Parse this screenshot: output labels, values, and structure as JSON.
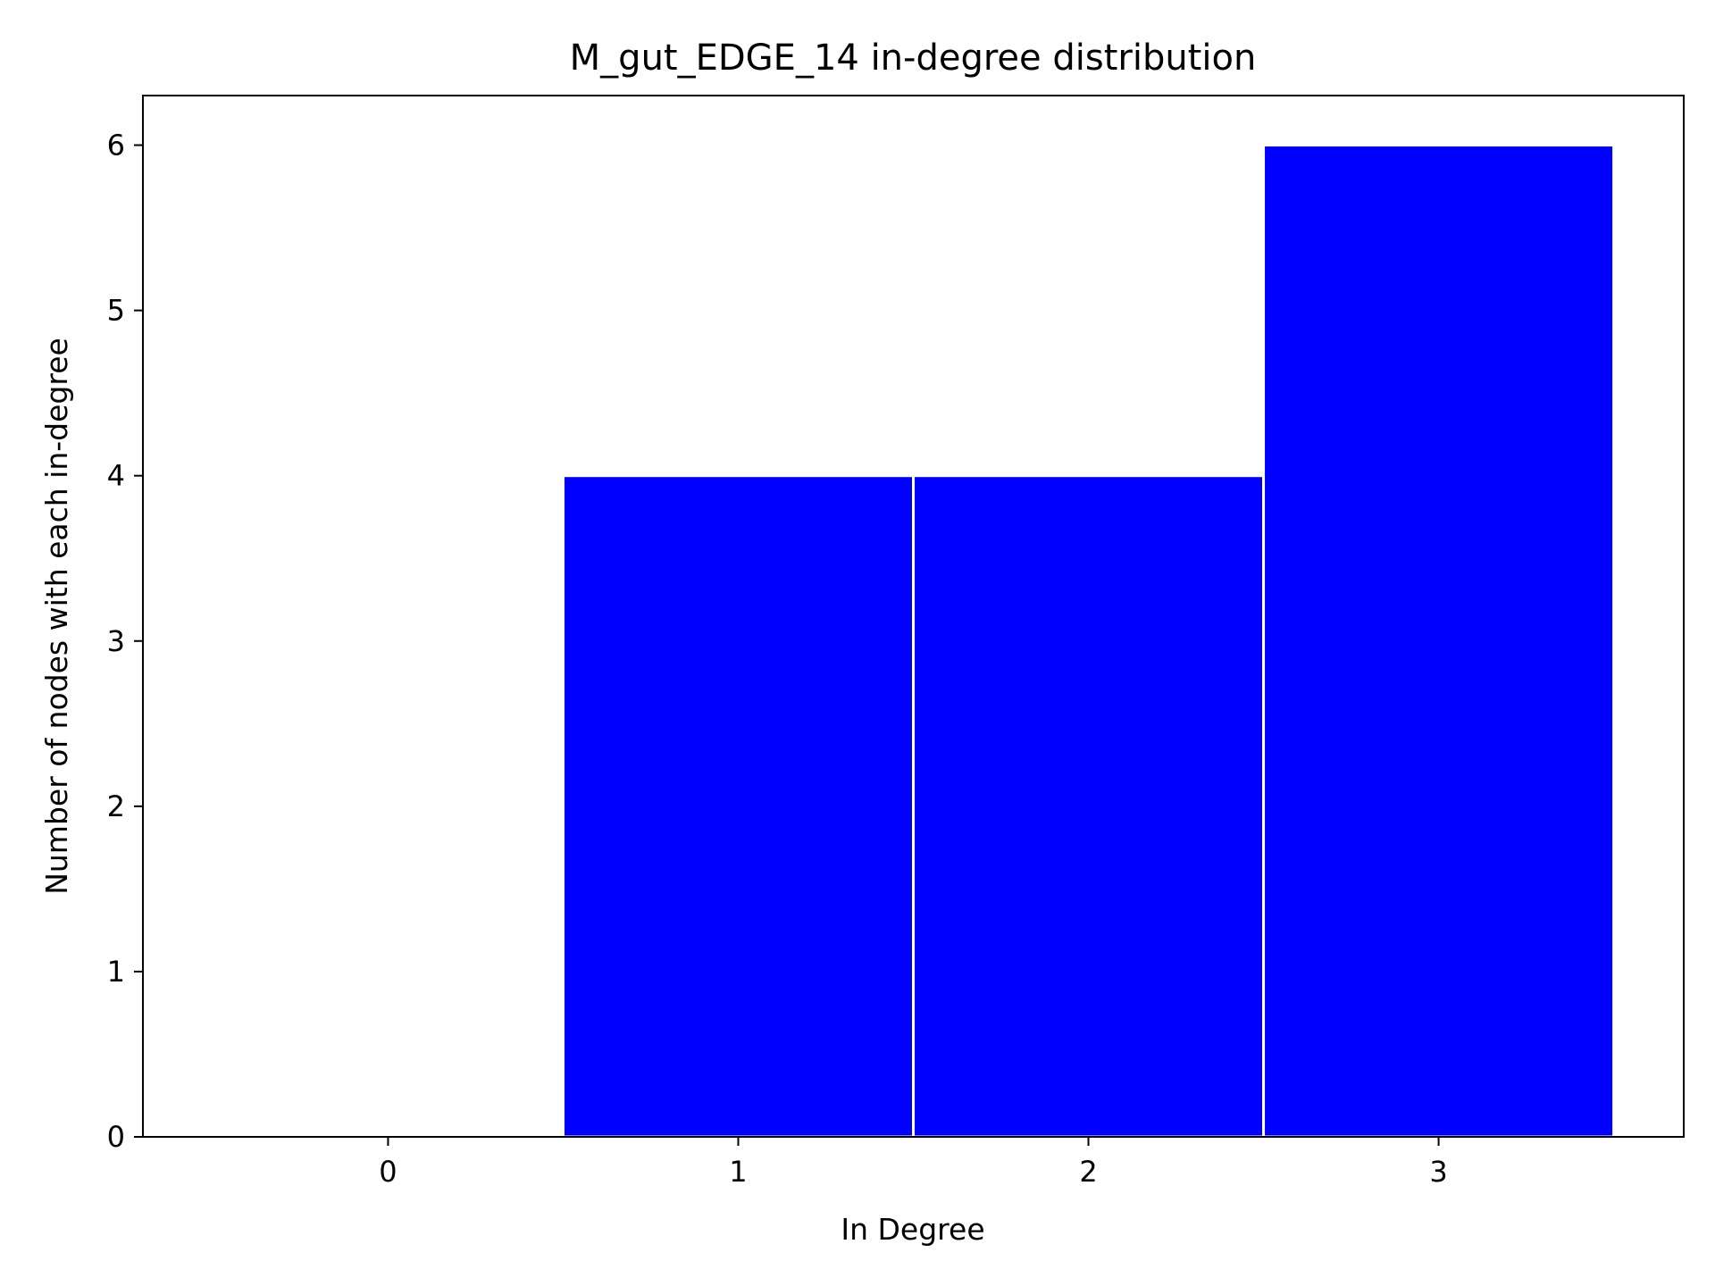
{
  "chart_data": {
    "type": "bar",
    "title": "M_gut_EDGE_14 in-degree distribution",
    "xlabel": "In Degree",
    "ylabel": "Number of nodes with each in-degree",
    "categories": [
      "0",
      "1",
      "2",
      "3"
    ],
    "x": [
      0,
      1,
      2,
      3
    ],
    "values": [
      0,
      4,
      4,
      6
    ],
    "xlim": [
      -0.7,
      3.7
    ],
    "ylim": [
      0,
      6.3
    ],
    "xticks": [
      "0",
      "1",
      "2",
      "3"
    ],
    "yticks": [
      "0",
      "1",
      "2",
      "3",
      "4",
      "5",
      "6"
    ],
    "grid": false,
    "legend": "none",
    "bar_color": "#0000ff",
    "bar_edge_color": "#ffffff"
  }
}
